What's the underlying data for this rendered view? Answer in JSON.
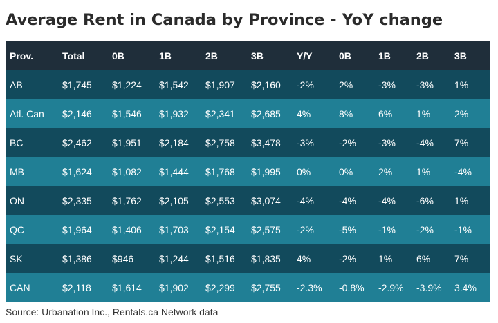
{
  "title": "Average Rent in Canada by Province - YoY change",
  "source": "Source: Urbanation Inc., Rentals.ca Network data",
  "colors": {
    "header_bg": "#1f2e3a",
    "row_dark": "#124a5c",
    "row_light": "#207f95",
    "text_light": "#ffffff",
    "title_text": "#2b2b2b"
  },
  "chart_data": {
    "type": "table",
    "title": "Average Rent in Canada by Province - YoY change",
    "columns": [
      "Prov.",
      "Total",
      "0B",
      "1B",
      "2B",
      "3B",
      "Y/Y",
      "0B",
      "1B",
      "2B",
      "3B"
    ],
    "rows": [
      [
        "AB",
        "$1,745",
        "$1,224",
        "$1,542",
        "$1,907",
        "$2,160",
        "-2%",
        "2%",
        "-3%",
        "-3%",
        "1%"
      ],
      [
        "Atl. Can",
        "$2,146",
        "$1,546",
        "$1,932",
        "$2,341",
        "$2,685",
        "4%",
        "8%",
        "6%",
        "1%",
        "2%"
      ],
      [
        "BC",
        "$2,462",
        "$1,951",
        "$2,184",
        "$2,758",
        "$3,478",
        "-3%",
        "-2%",
        "-3%",
        "-4%",
        "7%"
      ],
      [
        "MB",
        "$1,624",
        "$1,082",
        "$1,444",
        "$1,768",
        "$1,995",
        "0%",
        "0%",
        "2%",
        "1%",
        "-4%"
      ],
      [
        "ON",
        "$2,335",
        "$1,762",
        "$2,105",
        "$2,553",
        "$3,074",
        "-4%",
        "-4%",
        "-4%",
        "-6%",
        "1%"
      ],
      [
        "QC",
        "$1,964",
        "$1,406",
        "$1,703",
        "$2,154",
        "$2,575",
        "-2%",
        "-5%",
        "-1%",
        "-2%",
        "-1%"
      ],
      [
        "SK",
        "$1,386",
        "$946",
        "$1,244",
        "$1,516",
        "$1,835",
        "4%",
        "-2%",
        "1%",
        "6%",
        "7%"
      ],
      [
        "CAN",
        "$2,118",
        "$1,614",
        "$1,902",
        "$2,299",
        "$2,755",
        "-2.3%",
        "-0.8%",
        "-2.9%",
        "-3.9%",
        "3.4%"
      ]
    ]
  }
}
